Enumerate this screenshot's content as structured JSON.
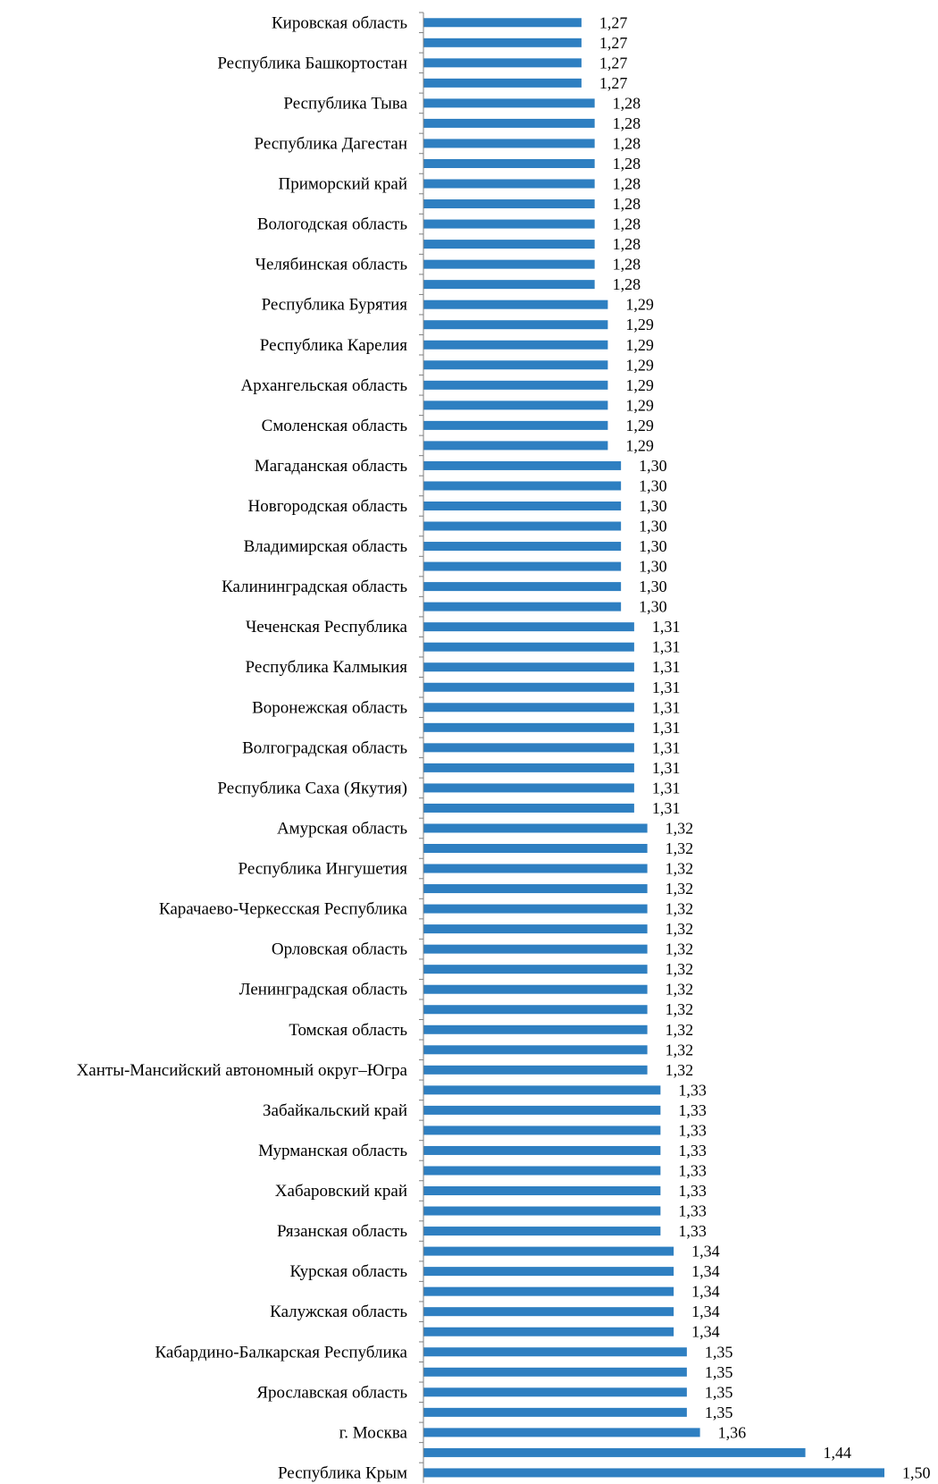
{
  "colors": {
    "bar": "#2E7FC1",
    "axis": "#7f7f7f",
    "text": "#000000"
  },
  "chart_data": {
    "type": "bar",
    "orientation": "horizontal",
    "title": "",
    "xlabel": "",
    "ylabel": "",
    "grid": false,
    "legend": "none",
    "xlim": [
      1.15,
      1.5
    ],
    "categories": [
      "Кировская область",
      "",
      "Республика Башкортостан",
      "",
      "Республика Тыва",
      "",
      "Республика Дагестан",
      "",
      "Приморский край",
      "",
      "Вологодская область",
      "",
      "Челябинская область",
      "",
      "Республика Бурятия",
      "",
      "Республика Карелия",
      "",
      "Архангельская область",
      "",
      "Смоленская область",
      "",
      "Магаданская область",
      "",
      "Новгородская область",
      "",
      "Владимирская область",
      "",
      "Калининградская область",
      "",
      "Чеченская Республика",
      "",
      "Республика Калмыкия",
      "",
      "Воронежская область",
      "",
      "Волгоградская область",
      "",
      "Республика Саха (Якутия)",
      "",
      "Амурская область",
      "",
      "Республика Ингушетия",
      "",
      "Карачаево-Черкесская Республика",
      "",
      "Орловская область",
      "",
      "Ленинградская область",
      "",
      "Томская область",
      "",
      "Ханты-Мансийский автономный округ–Югра",
      "",
      "Забайкальский край",
      "",
      "Мурманская область",
      "",
      "Хабаровский край",
      "",
      "Рязанская область",
      "",
      "Курская область",
      "",
      "Калужская область",
      "",
      "Кабардино-Балкарская Республика",
      "",
      "Ярославская область",
      "",
      "г. Москва",
      "",
      "Республика Крым"
    ],
    "values": [
      1.27,
      1.27,
      1.27,
      1.27,
      1.28,
      1.28,
      1.28,
      1.28,
      1.28,
      1.28,
      1.28,
      1.28,
      1.28,
      1.28,
      1.29,
      1.29,
      1.29,
      1.29,
      1.29,
      1.29,
      1.29,
      1.29,
      1.3,
      1.3,
      1.3,
      1.3,
      1.3,
      1.3,
      1.3,
      1.3,
      1.31,
      1.31,
      1.31,
      1.31,
      1.31,
      1.31,
      1.31,
      1.31,
      1.31,
      1.31,
      1.32,
      1.32,
      1.32,
      1.32,
      1.32,
      1.32,
      1.32,
      1.32,
      1.32,
      1.32,
      1.32,
      1.32,
      1.32,
      1.33,
      1.33,
      1.33,
      1.33,
      1.33,
      1.33,
      1.33,
      1.33,
      1.34,
      1.34,
      1.34,
      1.34,
      1.34,
      1.35,
      1.35,
      1.35,
      1.35,
      1.36,
      1.44,
      1.5
    ],
    "value_labels": [
      "1,27",
      "1,27",
      "1,27",
      "1,27",
      "1,28",
      "1,28",
      "1,28",
      "1,28",
      "1,28",
      "1,28",
      "1,28",
      "1,28",
      "1,28",
      "1,28",
      "1,29",
      "1,29",
      "1,29",
      "1,29",
      "1,29",
      "1,29",
      "1,29",
      "1,29",
      "1,30",
      "1,30",
      "1,30",
      "1,30",
      "1,30",
      "1,30",
      "1,30",
      "1,30",
      "1,31",
      "1,31",
      "1,31",
      "1,31",
      "1,31",
      "1,31",
      "1,31",
      "1,31",
      "1,31",
      "1,31",
      "1,32",
      "1,32",
      "1,32",
      "1,32",
      "1,32",
      "1,32",
      "1,32",
      "1,32",
      "1,32",
      "1,32",
      "1,32",
      "1,32",
      "1,32",
      "1,33",
      "1,33",
      "1,33",
      "1,33",
      "1,33",
      "1,33",
      "1,33",
      "1,33",
      "1,34",
      "1,34",
      "1,34",
      "1,34",
      "1,34",
      "1,35",
      "1,35",
      "1,35",
      "1,35",
      "1,36",
      "1,44",
      "1,50"
    ]
  }
}
